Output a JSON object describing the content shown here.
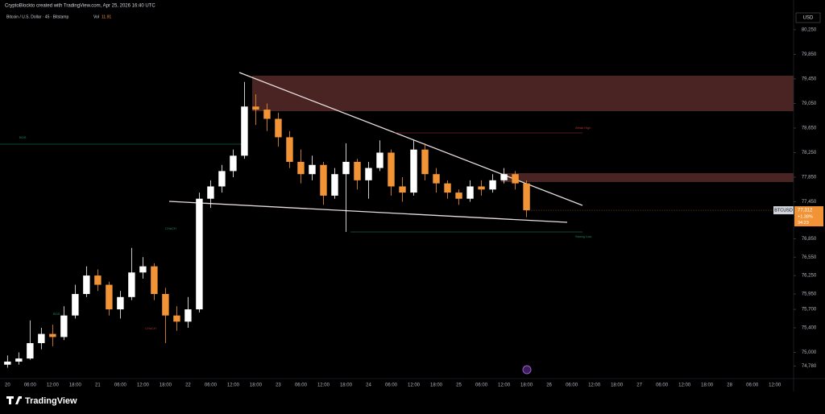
{
  "chart_data": {
    "type": "candlestick",
    "attribution": "CryptoBlockto created with TradingView.com, Apr 25, 2026 16:40 UTC",
    "title": "Bitcoin / U.S. Dollar · 45 · Bitstamp",
    "volume_label": "Vol",
    "volume": 11.91,
    "currency": "USD",
    "brand": "TradingView",
    "up_color": "#ffffff",
    "down_color": "#f29436",
    "xlim": [
      -2,
      209
    ],
    "ylim": [
      74600,
      80550
    ],
    "xticks": [
      {
        "value": 0,
        "label": "20"
      },
      {
        "value": 6,
        "label": "06:00"
      },
      {
        "value": 12,
        "label": "12:00"
      },
      {
        "value": 18,
        "label": "18:00"
      },
      {
        "value": 24,
        "label": "21"
      },
      {
        "value": 30,
        "label": "06:00"
      },
      {
        "value": 36,
        "label": "12:00"
      },
      {
        "value": 42,
        "label": "18:00"
      },
      {
        "value": 48,
        "label": "22"
      },
      {
        "value": 54,
        "label": "06:00"
      },
      {
        "value": 60,
        "label": "12:00"
      },
      {
        "value": 66,
        "label": "18:00"
      },
      {
        "value": 72,
        "label": "23"
      },
      {
        "value": 78,
        "label": "06:00"
      },
      {
        "value": 84,
        "label": "12:00"
      },
      {
        "value": 90,
        "label": "18:00"
      },
      {
        "value": 96,
        "label": "24"
      },
      {
        "value": 102,
        "label": "06:00"
      },
      {
        "value": 108,
        "label": "12:00"
      },
      {
        "value": 114,
        "label": "18:00"
      },
      {
        "value": 120,
        "label": "25"
      },
      {
        "value": 126,
        "label": "06:00"
      },
      {
        "value": 132,
        "label": "12:00"
      },
      {
        "value": 138,
        "label": "18:00"
      },
      {
        "value": 144,
        "label": "26"
      },
      {
        "value": 150,
        "label": "06:00"
      },
      {
        "value": 156,
        "label": "12:00"
      },
      {
        "value": 162,
        "label": "18:00"
      },
      {
        "value": 168,
        "label": "27"
      },
      {
        "value": 174,
        "label": "06:00"
      },
      {
        "value": 180,
        "label": "12:00"
      },
      {
        "value": 186,
        "label": "18:00"
      },
      {
        "value": 192,
        "label": "28"
      },
      {
        "value": 198,
        "label": "06:00"
      },
      {
        "value": 204,
        "label": "12:00"
      }
    ],
    "yticks": [
      {
        "value": 80250,
        "label": "80,250"
      },
      {
        "value": 79850,
        "label": "79,850"
      },
      {
        "value": 79450,
        "label": "79,450"
      },
      {
        "value": 79050,
        "label": "79,050"
      },
      {
        "value": 78650,
        "label": "78,650"
      },
      {
        "value": 78250,
        "label": "78,250"
      },
      {
        "value": 77850,
        "label": "77,850"
      },
      {
        "value": 77450,
        "label": "77,450"
      },
      {
        "value": 76850,
        "label": "76,850"
      },
      {
        "value": 76550,
        "label": "76,550"
      },
      {
        "value": 76250,
        "label": "76,250"
      },
      {
        "value": 75950,
        "label": "75,950"
      },
      {
        "value": 75700,
        "label": "75,700"
      },
      {
        "value": 75400,
        "label": "75,400"
      },
      {
        "value": 75000,
        "label": "75,000"
      },
      {
        "value": 74780,
        "label": "74,780"
      }
    ],
    "x": [
      0,
      3,
      6,
      9,
      12,
      15,
      18,
      21,
      24,
      27,
      30,
      33,
      36,
      39,
      42,
      45,
      48,
      51,
      54,
      57,
      60,
      63,
      66,
      69,
      72,
      75,
      78,
      81,
      84,
      87,
      90,
      93,
      96,
      99,
      102,
      105,
      108,
      111,
      114,
      117,
      120,
      123,
      126,
      129,
      132,
      135,
      138
    ],
    "open": [
      74800,
      74850,
      74900,
      75150,
      75300,
      75250,
      75600,
      75950,
      76250,
      76100,
      75700,
      75900,
      76300,
      76400,
      75950,
      75600,
      75500,
      75700,
      77500,
      77700,
      77950,
      78200,
      79000,
      78950,
      78800,
      78500,
      78100,
      77900,
      78050,
      77550,
      77900,
      78100,
      77800,
      78000,
      78250,
      77700,
      77600,
      78300,
      77900,
      77750,
      77600,
      77500,
      77700,
      77650,
      77800,
      77900,
      77750
    ],
    "high": [
      74950,
      75000,
      75520,
      75400,
      75450,
      75750,
      76100,
      76400,
      76350,
      76150,
      76000,
      76700,
      76550,
      76450,
      76050,
      75750,
      75900,
      77600,
      77800,
      78050,
      78300,
      79400,
      79200,
      79050,
      78900,
      78600,
      78300,
      78200,
      78100,
      78000,
      78400,
      78150,
      78100,
      78450,
      78300,
      77850,
      78450,
      78400,
      78000,
      77800,
      77650,
      77800,
      77800,
      77900,
      78000,
      77950,
      77800
    ],
    "low": [
      74750,
      74800,
      74880,
      75050,
      75100,
      75200,
      75550,
      75900,
      76000,
      75600,
      75550,
      75850,
      76200,
      75850,
      75150,
      75350,
      75400,
      75650,
      77350,
      77600,
      77850,
      78150,
      78700,
      78600,
      78350,
      78000,
      77750,
      77800,
      77400,
      77500,
      76960,
      77650,
      77500,
      77950,
      77550,
      77450,
      77550,
      77800,
      77600,
      77500,
      77400,
      77450,
      77550,
      77600,
      77750,
      77650,
      77200
    ],
    "close": [
      74850,
      74900,
      75150,
      75300,
      75250,
      75600,
      75950,
      76250,
      76100,
      75700,
      75900,
      76300,
      76400,
      75950,
      75600,
      75500,
      75700,
      77500,
      77700,
      77950,
      78200,
      79000,
      78950,
      78800,
      78500,
      78100,
      77900,
      78050,
      77550,
      77900,
      78100,
      77800,
      78000,
      78250,
      77700,
      77600,
      78300,
      77900,
      77750,
      77600,
      77500,
      77700,
      77650,
      77800,
      77900,
      77750,
      77312
    ],
    "price_label": {
      "symbol": "BTCUSD",
      "value": 77312,
      "label": "77,312",
      "change": "+1.38%",
      "countdown": "34:23"
    },
    "annotations": [
      "BOS",
      "Weak High",
      "Strong Low",
      "CHoCH",
      "CHoCH",
      "BOS"
    ]
  }
}
